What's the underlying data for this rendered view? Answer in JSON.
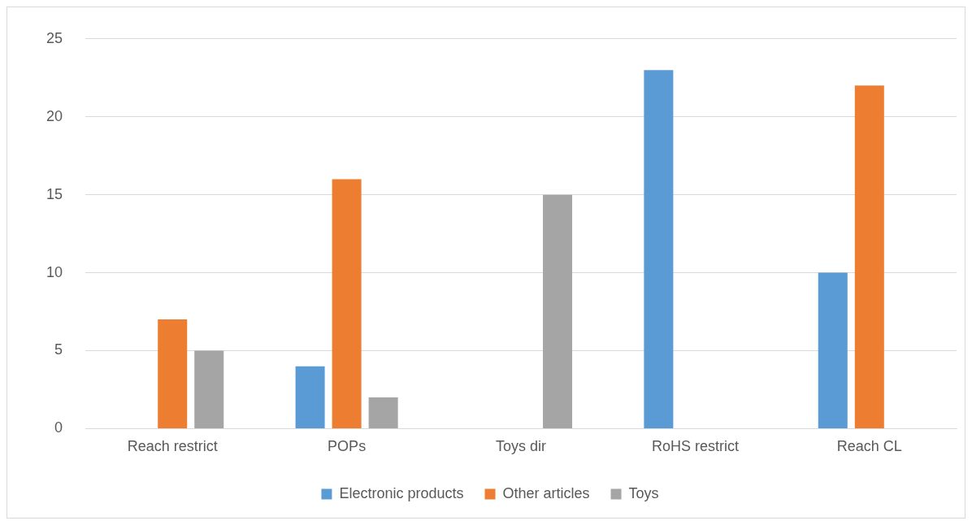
{
  "chart_data": {
    "type": "bar",
    "categories": [
      "Reach restrict",
      "POPs",
      "Toys dir",
      "RoHS restrict",
      "Reach CL"
    ],
    "series": [
      {
        "name": "Electronic products",
        "color": "#5b9bd5",
        "values": [
          0,
          4,
          0,
          23,
          10
        ]
      },
      {
        "name": "Other articles",
        "color": "#ed7d31",
        "values": [
          7,
          16,
          0,
          0,
          22
        ]
      },
      {
        "name": "Toys",
        "color": "#a5a5a5",
        "values": [
          5,
          2,
          15,
          0,
          0
        ]
      }
    ],
    "ylim": [
      0,
      25
    ],
    "yticks": [
      0,
      5,
      10,
      15,
      20,
      25
    ],
    "grid": "y",
    "legend": "bottom"
  }
}
